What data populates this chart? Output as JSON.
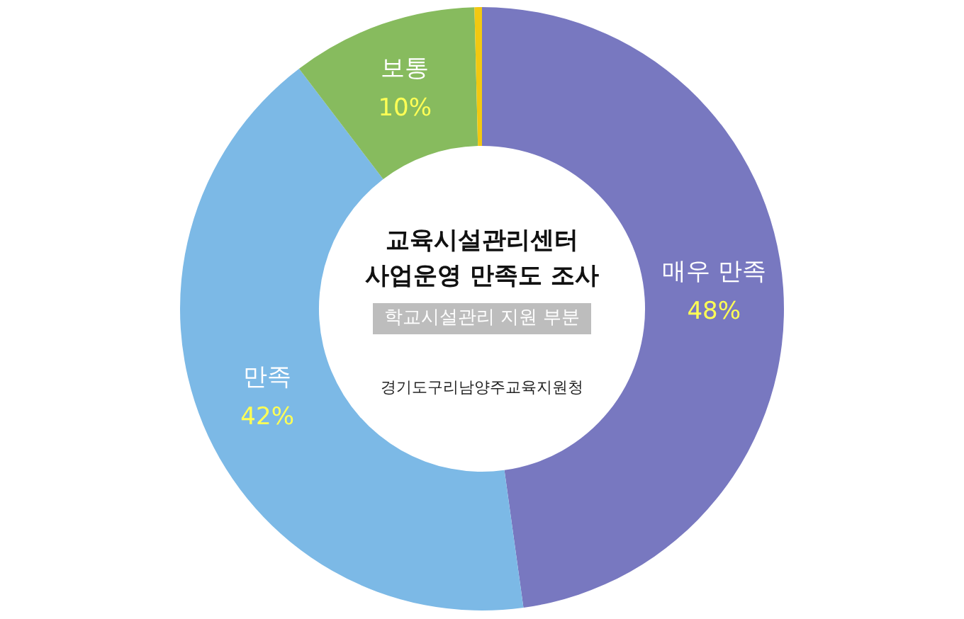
{
  "chart_data": {
    "type": "donut",
    "title": "교육시설관리센터 사업운영 만족도 조사",
    "subtitle": "학교시설관리 지원 부분",
    "annotations": [
      "경기도구리남양주교육지원청"
    ],
    "categories": [
      "매우 만족",
      "만족",
      "보통",
      null
    ],
    "values": [
      48,
      42,
      10,
      0.4
    ],
    "colors": [
      "#7878c0",
      "#7cb9e6",
      "#87bb5e",
      "#f2c811"
    ],
    "value_labels": [
      "48%",
      "42%",
      "10%",
      null
    ]
  }
}
